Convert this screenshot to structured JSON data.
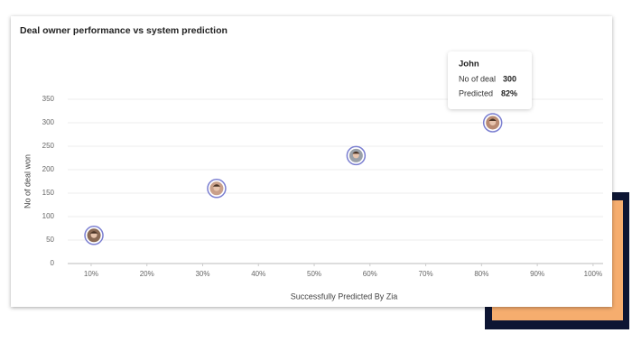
{
  "chart_data": {
    "type": "scatter",
    "title": "Deal owner performance vs system prediction",
    "xlabel": "Successfully Predicted By Zia",
    "ylabel": "No of deal won",
    "x": [
      10.5,
      32.5,
      57.5,
      82
    ],
    "values": [
      60,
      160,
      230,
      300
    ],
    "color": "#7b7fd1",
    "xlim": [
      5.8,
      101.8
    ],
    "xticks": [
      {
        "value": 10,
        "label": "10%"
      },
      {
        "value": 20,
        "label": "20%"
      },
      {
        "value": 30,
        "label": "30%"
      },
      {
        "value": 40,
        "label": "40%"
      },
      {
        "value": 50,
        "label": "50%"
      },
      {
        "value": 60,
        "label": "60%"
      },
      {
        "value": 70,
        "label": "70%"
      },
      {
        "value": 80,
        "label": "80%"
      },
      {
        "value": 90,
        "label": "90%"
      },
      {
        "value": 100,
        "label": "100%"
      }
    ],
    "ylim": [
      0,
      350
    ],
    "yticks": [
      0,
      50,
      100,
      150,
      200,
      250,
      300,
      350
    ],
    "grid": true,
    "tooltip": {
      "title": "John",
      "rows": [
        {
          "label": "No of deal",
          "value": "300"
        },
        {
          "label": "Predicted",
          "value": "82%"
        }
      ]
    }
  }
}
